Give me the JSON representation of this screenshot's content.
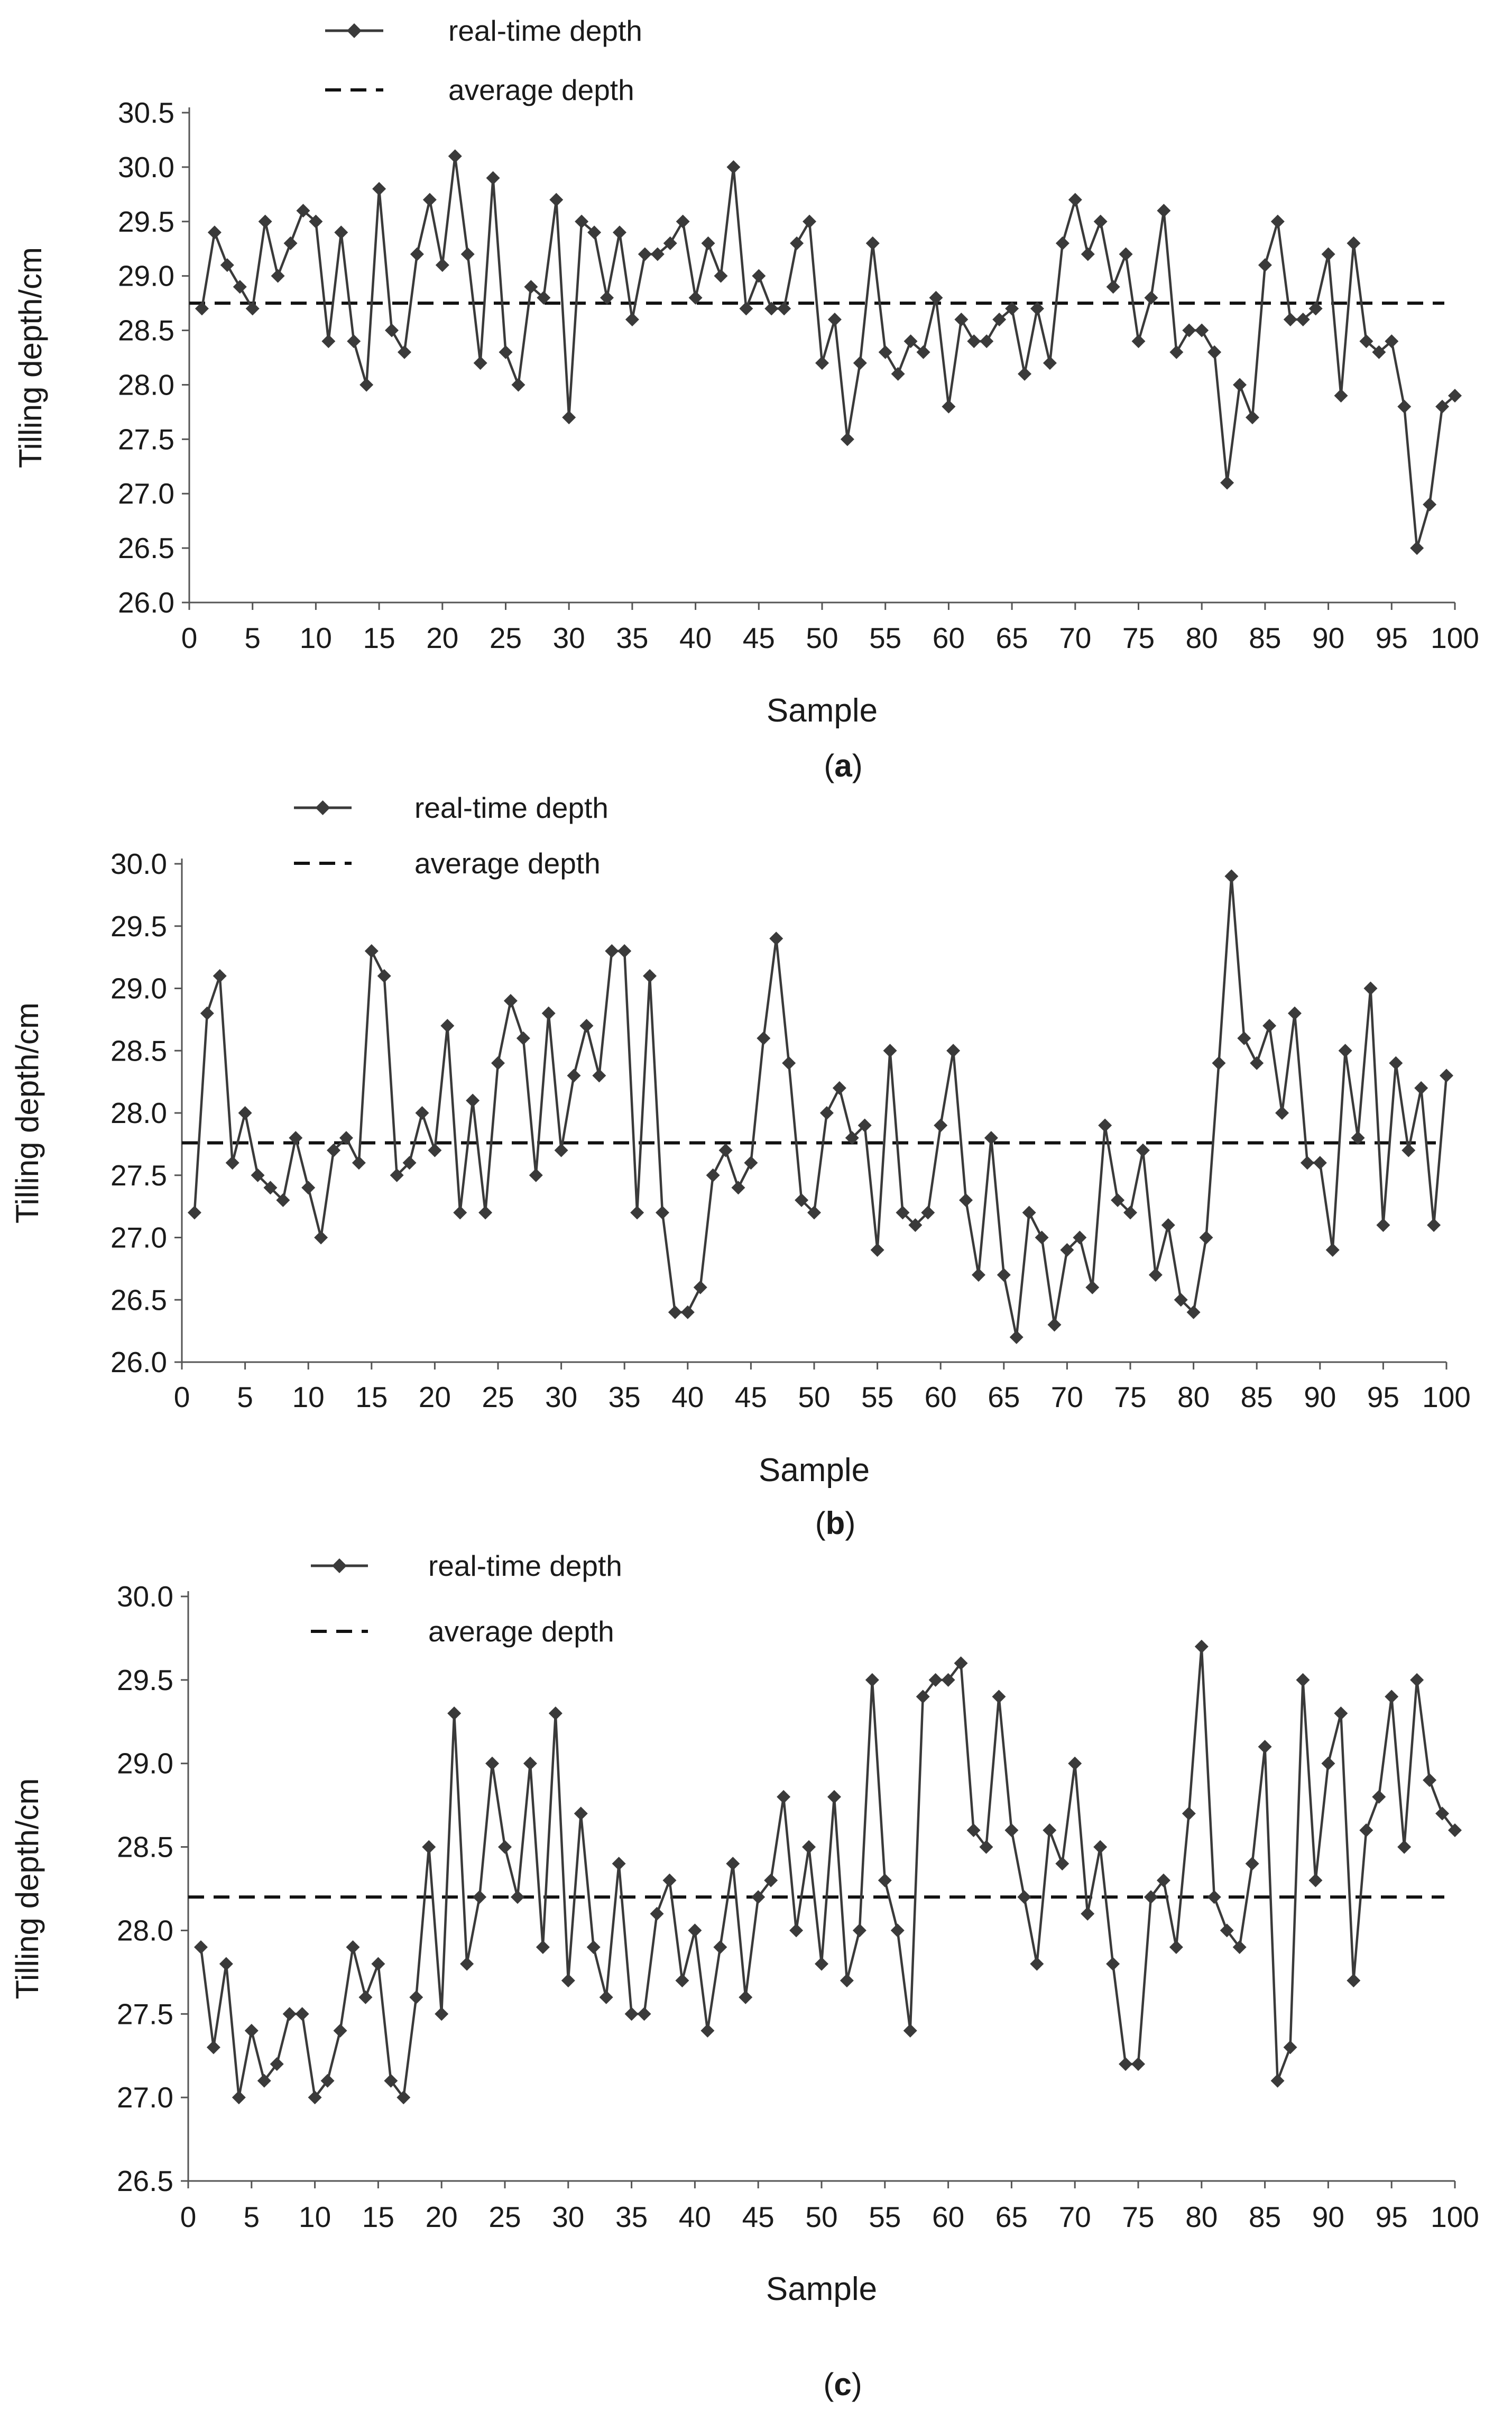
{
  "chart_data": [
    {
      "type": "line",
      "panel_label": "a",
      "title": "",
      "xlabel": "Sample",
      "ylabel": "Tilling depth/cm",
      "xlim": [
        0,
        100
      ],
      "ylim": [
        26.0,
        30.5
      ],
      "xticks": [
        0,
        5,
        10,
        15,
        20,
        25,
        30,
        35,
        40,
        45,
        50,
        55,
        60,
        65,
        70,
        75,
        80,
        85,
        90,
        95,
        100
      ],
      "yticks": [
        26.0,
        26.5,
        27.0,
        27.5,
        28.0,
        28.5,
        29.0,
        29.5,
        30.0,
        30.5
      ],
      "grid": false,
      "legend": {
        "location": "top-left",
        "entries": [
          "real-time depth",
          "average depth"
        ]
      },
      "x": [
        1,
        2,
        3,
        4,
        5,
        6,
        7,
        8,
        9,
        10,
        11,
        12,
        13,
        14,
        15,
        16,
        17,
        18,
        19,
        20,
        21,
        22,
        23,
        24,
        25,
        26,
        27,
        28,
        29,
        30,
        31,
        32,
        33,
        34,
        35,
        36,
        37,
        38,
        39,
        40,
        41,
        42,
        43,
        44,
        45,
        46,
        47,
        48,
        49,
        50,
        51,
        52,
        53,
        54,
        55,
        56,
        57,
        58,
        59,
        60,
        61,
        62,
        63,
        64,
        65,
        66,
        67,
        68,
        69,
        70,
        71,
        72,
        73,
        74,
        75,
        76,
        77,
        78,
        79,
        80,
        81,
        82,
        83,
        84,
        85,
        86,
        87,
        88,
        89,
        90,
        91,
        92,
        93,
        94,
        95,
        96,
        97,
        98,
        99,
        100
      ],
      "series": [
        {
          "name": "real-time depth",
          "style": "solid-with-diamond-markers",
          "values": [
            28.7,
            29.4,
            29.1,
            28.9,
            28.7,
            29.5,
            29.0,
            29.3,
            29.6,
            29.5,
            28.4,
            29.4,
            28.4,
            28.0,
            29.8,
            28.5,
            28.3,
            29.2,
            29.7,
            29.1,
            30.1,
            29.2,
            28.2,
            29.9,
            28.3,
            28.0,
            28.9,
            28.8,
            29.7,
            27.7,
            29.5,
            29.4,
            28.8,
            29.4,
            28.6,
            29.2,
            29.2,
            29.3,
            29.5,
            28.8,
            29.3,
            29.0,
            30.0,
            28.7,
            29.0,
            28.7,
            28.7,
            29.3,
            29.5,
            28.2,
            28.6,
            27.5,
            28.2,
            29.3,
            28.3,
            28.1,
            28.4,
            28.3,
            28.8,
            27.8,
            28.6,
            28.4,
            28.4,
            28.6,
            28.7,
            28.1,
            28.7,
            28.2,
            29.3,
            29.7,
            29.2,
            29.5,
            28.9,
            29.2,
            28.4,
            28.8,
            29.6,
            28.3,
            28.5,
            28.5,
            28.3,
            27.1,
            28.0,
            27.7,
            29.1,
            29.5,
            28.6,
            28.6,
            28.7,
            29.2,
            27.9,
            29.3,
            28.4,
            28.3,
            28.4,
            27.8,
            26.5,
            26.9,
            27.8,
            27.9
          ]
        },
        {
          "name": "average depth",
          "style": "dashed",
          "value": 28.75
        }
      ]
    },
    {
      "type": "line",
      "panel_label": "b",
      "title": "",
      "xlabel": "Sample",
      "ylabel": "Tilling depth/cm",
      "xlim": [
        0,
        100
      ],
      "ylim": [
        26.0,
        30.0
      ],
      "xticks": [
        0,
        5,
        10,
        15,
        20,
        25,
        30,
        35,
        40,
        45,
        50,
        55,
        60,
        65,
        70,
        75,
        80,
        85,
        90,
        95,
        100
      ],
      "yticks": [
        26.0,
        26.5,
        27.0,
        27.5,
        28.0,
        28.5,
        29.0,
        29.5,
        30.0
      ],
      "grid": false,
      "legend": {
        "location": "top-left",
        "entries": [
          "real-time depth",
          "average depth"
        ]
      },
      "x": [
        1,
        2,
        3,
        4,
        5,
        6,
        7,
        8,
        9,
        10,
        11,
        12,
        13,
        14,
        15,
        16,
        17,
        18,
        19,
        20,
        21,
        22,
        23,
        24,
        25,
        26,
        27,
        28,
        29,
        30,
        31,
        32,
        33,
        34,
        35,
        36,
        37,
        38,
        39,
        40,
        41,
        42,
        43,
        44,
        45,
        46,
        47,
        48,
        49,
        50,
        51,
        52,
        53,
        54,
        55,
        56,
        57,
        58,
        59,
        60,
        61,
        62,
        63,
        64,
        65,
        66,
        67,
        68,
        69,
        70,
        71,
        72,
        73,
        74,
        75,
        76,
        77,
        78,
        79,
        80,
        81,
        82,
        83,
        84,
        85,
        86,
        87,
        88,
        89,
        90,
        91,
        92,
        93,
        94,
        95,
        96,
        97,
        98,
        99,
        100
      ],
      "series": [
        {
          "name": "real-time depth",
          "style": "solid-with-diamond-markers",
          "values": [
            27.2,
            28.8,
            29.1,
            27.6,
            28.0,
            27.5,
            27.4,
            27.3,
            27.8,
            27.4,
            27.0,
            27.7,
            27.8,
            27.6,
            29.3,
            29.1,
            27.5,
            27.6,
            28.0,
            27.7,
            28.7,
            27.2,
            28.1,
            27.2,
            28.4,
            28.9,
            28.6,
            27.5,
            28.8,
            27.7,
            28.3,
            28.7,
            28.3,
            29.3,
            29.3,
            27.2,
            29.1,
            27.2,
            26.4,
            26.4,
            26.6,
            27.5,
            27.7,
            27.4,
            27.6,
            28.6,
            29.4,
            28.4,
            27.3,
            27.2,
            28.0,
            28.2,
            27.8,
            27.9,
            26.9,
            28.5,
            27.2,
            27.1,
            27.2,
            27.9,
            28.5,
            27.3,
            26.7,
            27.8,
            26.7,
            26.2,
            27.2,
            27.0,
            26.3,
            26.9,
            27.0,
            26.6,
            27.9,
            27.3,
            27.2,
            27.7,
            26.7,
            27.1,
            26.5,
            26.4,
            27.0,
            28.4,
            29.9,
            28.6,
            28.4,
            28.7,
            28.0,
            28.8,
            27.6,
            27.6,
            26.9,
            28.5,
            27.8,
            29.0,
            27.1,
            28.4,
            27.7,
            28.2,
            27.1,
            28.3
          ]
        },
        {
          "name": "average depth",
          "style": "dashed",
          "value": 27.76
        }
      ]
    },
    {
      "type": "line",
      "panel_label": "c",
      "title": "",
      "xlabel": "Sample",
      "ylabel": "Tilling depth/cm",
      "xlim": [
        0,
        100
      ],
      "ylim": [
        26.5,
        30.0
      ],
      "xticks": [
        0,
        5,
        10,
        15,
        20,
        25,
        30,
        35,
        40,
        45,
        50,
        55,
        60,
        65,
        70,
        75,
        80,
        85,
        90,
        95,
        100
      ],
      "yticks": [
        26.5,
        27.0,
        27.5,
        28.0,
        28.5,
        29.0,
        29.5,
        30.0
      ],
      "grid": false,
      "legend": {
        "location": "top-left",
        "entries": [
          "real-time depth",
          "average depth"
        ]
      },
      "x": [
        1,
        2,
        3,
        4,
        5,
        6,
        7,
        8,
        9,
        10,
        11,
        12,
        13,
        14,
        15,
        16,
        17,
        18,
        19,
        20,
        21,
        22,
        23,
        24,
        25,
        26,
        27,
        28,
        29,
        30,
        31,
        32,
        33,
        34,
        35,
        36,
        37,
        38,
        39,
        40,
        41,
        42,
        43,
        44,
        45,
        46,
        47,
        48,
        49,
        50,
        51,
        52,
        53,
        54,
        55,
        56,
        57,
        58,
        59,
        60,
        61,
        62,
        63,
        64,
        65,
        66,
        67,
        68,
        69,
        70,
        71,
        72,
        73,
        74,
        75,
        76,
        77,
        78,
        79,
        80,
        81,
        82,
        83,
        84,
        85,
        86,
        87,
        88,
        89,
        90,
        91,
        92,
        93,
        94,
        95,
        96,
        97,
        98,
        99,
        100
      ],
      "series": [
        {
          "name": "real-time depth",
          "style": "solid-with-diamond-markers",
          "values": [
            27.9,
            27.3,
            27.8,
            27.0,
            27.4,
            27.1,
            27.2,
            27.5,
            27.5,
            27.0,
            27.1,
            27.4,
            27.9,
            27.6,
            27.8,
            27.1,
            27.0,
            27.6,
            28.5,
            27.5,
            29.3,
            27.8,
            28.2,
            29.0,
            28.5,
            28.2,
            29.0,
            27.9,
            29.3,
            27.7,
            28.7,
            27.9,
            27.6,
            28.4,
            27.5,
            27.5,
            28.1,
            28.3,
            27.7,
            28.0,
            27.4,
            27.9,
            28.4,
            27.6,
            28.2,
            28.3,
            28.8,
            28.0,
            28.5,
            27.8,
            28.8,
            27.7,
            28.0,
            29.5,
            28.3,
            28.0,
            27.4,
            29.4,
            29.5,
            29.5,
            29.6,
            28.6,
            28.5,
            29.4,
            28.6,
            28.2,
            27.8,
            28.6,
            28.4,
            29.0,
            28.1,
            28.5,
            27.8,
            27.2,
            27.2,
            28.2,
            28.3,
            27.9,
            28.7,
            29.7,
            28.2,
            28.0,
            27.9,
            28.4,
            29.1,
            27.1,
            27.3,
            29.5,
            28.3,
            29.0,
            29.3,
            27.7,
            28.6,
            28.8,
            29.4,
            28.5,
            29.5,
            28.9,
            28.7,
            28.6
          ]
        },
        {
          "name": "average depth",
          "style": "dashed",
          "value": 28.2
        }
      ]
    }
  ]
}
